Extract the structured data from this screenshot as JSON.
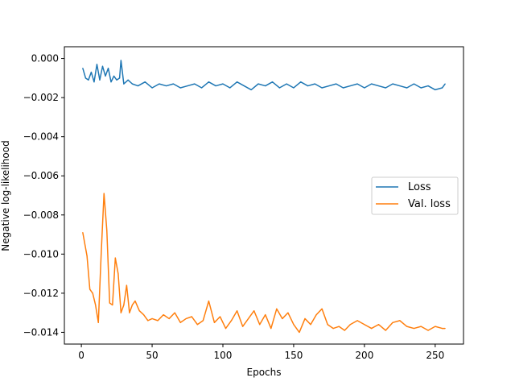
{
  "chart_data": {
    "type": "line",
    "title": "",
    "xlabel": "Epochs",
    "ylabel": "Negative log-likelihood",
    "xlim": [
      -12,
      270
    ],
    "ylim": [
      -0.0146,
      0.0006
    ],
    "xticks": [
      0,
      50,
      100,
      150,
      200,
      250
    ],
    "xtick_labels": [
      "0",
      "50",
      "100",
      "150",
      "200",
      "250"
    ],
    "yticks": [
      0.0,
      -0.002,
      -0.004,
      -0.006,
      -0.008,
      -0.01,
      -0.012,
      -0.014
    ],
    "ytick_labels": [
      "0.000",
      "−0.002",
      "−0.004",
      "−0.006",
      "−0.008",
      "−0.010",
      "−0.012",
      "−0.014"
    ],
    "grid": false,
    "legend_position": "center-right",
    "series": [
      {
        "name": "Loss",
        "color": "#1f77b4",
        "x": [
          1,
          3,
          5,
          7,
          9,
          11,
          13,
          15,
          17,
          19,
          21,
          23,
          25,
          27,
          28,
          30,
          33,
          36,
          40,
          45,
          50,
          55,
          60,
          65,
          70,
          75,
          80,
          85,
          90,
          95,
          100,
          105,
          110,
          115,
          120,
          125,
          130,
          135,
          140,
          145,
          150,
          155,
          160,
          165,
          170,
          175,
          180,
          185,
          190,
          195,
          200,
          205,
          210,
          215,
          220,
          225,
          230,
          235,
          240,
          245,
          250,
          255,
          257
        ],
        "y": [
          -0.0005,
          -0.001,
          -0.0011,
          -0.0007,
          -0.0012,
          -0.0003,
          -0.0011,
          -0.0004,
          -0.0009,
          -0.0005,
          -0.0012,
          -0.0009,
          -0.0011,
          -0.001,
          -0.0001,
          -0.0013,
          -0.0011,
          -0.0013,
          -0.0014,
          -0.0012,
          -0.0015,
          -0.0013,
          -0.0014,
          -0.0013,
          -0.0015,
          -0.0014,
          -0.0013,
          -0.0015,
          -0.0012,
          -0.0014,
          -0.0013,
          -0.0015,
          -0.0012,
          -0.0014,
          -0.0016,
          -0.0013,
          -0.0014,
          -0.0012,
          -0.0015,
          -0.0013,
          -0.0015,
          -0.0012,
          -0.0014,
          -0.0013,
          -0.0015,
          -0.0014,
          -0.0013,
          -0.0015,
          -0.0014,
          -0.0013,
          -0.0015,
          -0.0013,
          -0.0014,
          -0.0015,
          -0.0013,
          -0.0014,
          -0.0015,
          -0.0013,
          -0.0015,
          -0.0014,
          -0.0016,
          -0.0015,
          -0.0013
        ]
      },
      {
        "name": "Val. loss",
        "color": "#ff7f0e",
        "x": [
          1,
          4,
          6,
          8,
          10,
          12,
          14,
          16,
          18,
          20,
          22,
          24,
          26,
          28,
          30,
          32,
          34,
          36,
          38,
          41,
          44,
          47,
          50,
          54,
          58,
          62,
          66,
          70,
          74,
          78,
          82,
          86,
          90,
          94,
          98,
          102,
          106,
          110,
          114,
          118,
          122,
          126,
          130,
          134,
          138,
          142,
          146,
          150,
          154,
          158,
          162,
          166,
          170,
          174,
          178,
          182,
          186,
          190,
          195,
          200,
          205,
          210,
          215,
          220,
          225,
          230,
          235,
          240,
          245,
          250,
          255,
          257
        ],
        "y": [
          -0.0089,
          -0.0101,
          -0.0118,
          -0.012,
          -0.0126,
          -0.0135,
          -0.01,
          -0.0069,
          -0.0088,
          -0.0125,
          -0.0126,
          -0.0102,
          -0.011,
          -0.013,
          -0.0126,
          -0.0116,
          -0.013,
          -0.0126,
          -0.0124,
          -0.0129,
          -0.0131,
          -0.0134,
          -0.0133,
          -0.0134,
          -0.0131,
          -0.0133,
          -0.013,
          -0.0135,
          -0.0133,
          -0.0132,
          -0.0136,
          -0.0134,
          -0.0124,
          -0.0135,
          -0.0132,
          -0.0138,
          -0.0134,
          -0.0129,
          -0.0137,
          -0.0133,
          -0.0129,
          -0.0136,
          -0.0131,
          -0.0138,
          -0.0128,
          -0.0133,
          -0.013,
          -0.0136,
          -0.014,
          -0.0133,
          -0.0136,
          -0.0131,
          -0.0128,
          -0.0136,
          -0.0138,
          -0.0137,
          -0.0139,
          -0.0136,
          -0.0134,
          -0.0136,
          -0.0138,
          -0.0136,
          -0.0139,
          -0.0135,
          -0.0134,
          -0.0137,
          -0.0138,
          -0.0137,
          -0.0139,
          -0.0137,
          -0.0138,
          -0.0138
        ]
      }
    ]
  }
}
